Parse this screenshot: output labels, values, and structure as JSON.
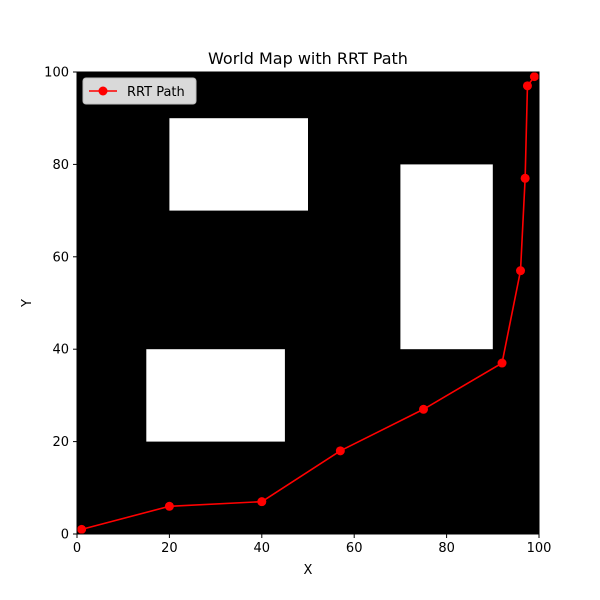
{
  "chart_data": {
    "type": "line",
    "title": "World Map with RRT Path",
    "xlabel": "X",
    "ylabel": "Y",
    "xlim": [
      0,
      100
    ],
    "ylim": [
      0,
      100
    ],
    "xticks": [
      0,
      20,
      40,
      60,
      80,
      100
    ],
    "yticks": [
      0,
      20,
      40,
      60,
      80,
      100
    ],
    "grid": false,
    "background_color": "#000000",
    "obstacle_color": "#ffffff",
    "obstacles": [
      {
        "x": [
          20,
          50
        ],
        "y": [
          70,
          90
        ]
      },
      {
        "x": [
          70,
          90
        ],
        "y": [
          40,
          80
        ]
      },
      {
        "x": [
          15,
          45
        ],
        "y": [
          20,
          40
        ]
      }
    ],
    "legend": {
      "placement": "upper-left"
    },
    "series": [
      {
        "name": "RRT Path",
        "color": "#ff0000",
        "marker": "circle",
        "x": [
          1,
          20,
          40,
          57,
          75,
          92,
          96,
          97,
          97.5,
          99
        ],
        "y": [
          1,
          6,
          7,
          18,
          27,
          37,
          57,
          77,
          97,
          99
        ]
      }
    ]
  }
}
